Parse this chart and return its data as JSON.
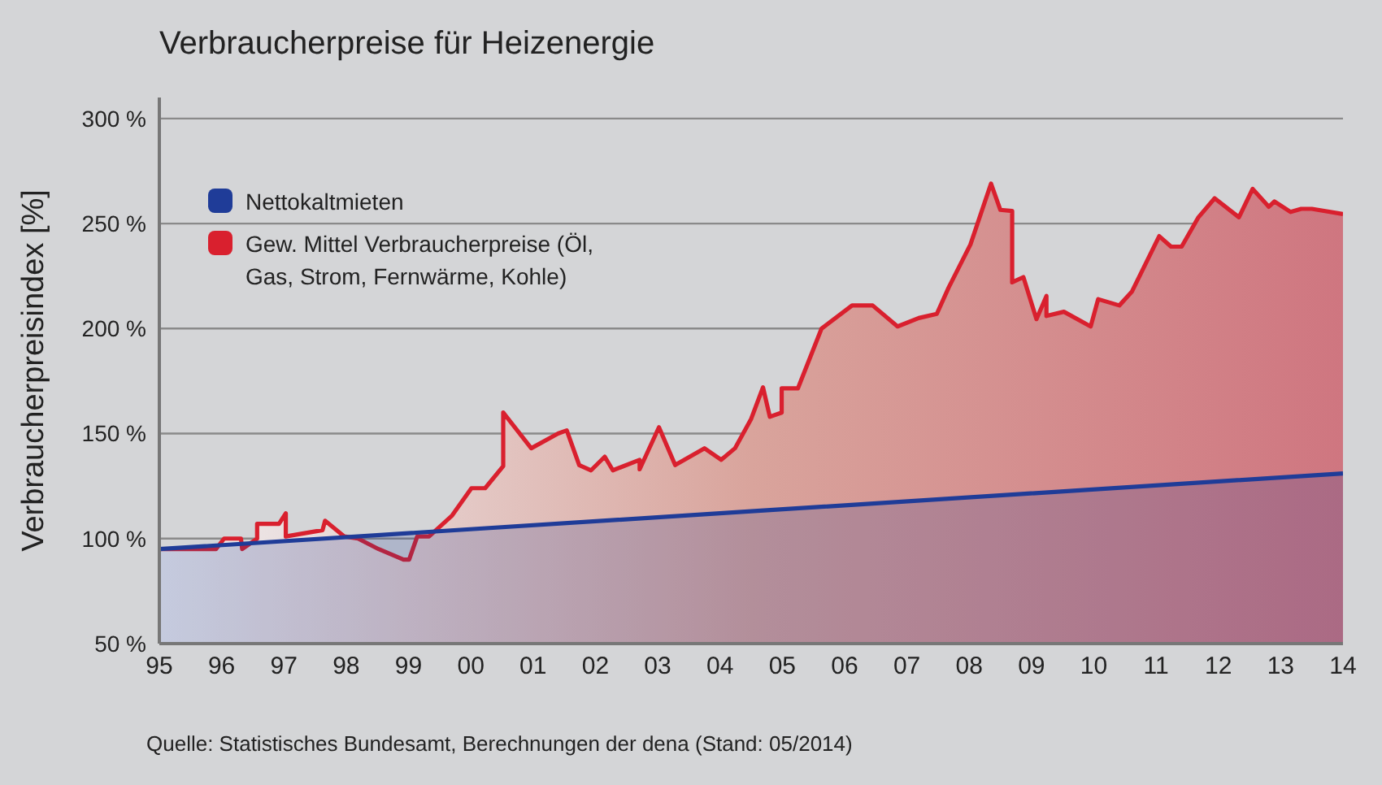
{
  "chart_data": {
    "type": "area",
    "title": "Verbraucherpreise für Heizenergie",
    "ylabel": "Verbraucherpreisindex [%]",
    "xlim": [
      1995,
      2014
    ],
    "xticks": [
      {
        "value": 1995,
        "label": "95"
      },
      {
        "value": 1996,
        "label": "96"
      },
      {
        "value": 1997,
        "label": "97"
      },
      {
        "value": 1998,
        "label": "98"
      },
      {
        "value": 1999,
        "label": "99"
      },
      {
        "value": 2000,
        "label": "00"
      },
      {
        "value": 2001,
        "label": "01"
      },
      {
        "value": 2002,
        "label": "02"
      },
      {
        "value": 2003,
        "label": "03"
      },
      {
        "value": 2004,
        "label": "04"
      },
      {
        "value": 2005,
        "label": "05"
      },
      {
        "value": 2006,
        "label": "06"
      },
      {
        "value": 2007,
        "label": "07"
      },
      {
        "value": 2008,
        "label": "08"
      },
      {
        "value": 2009,
        "label": "09"
      },
      {
        "value": 2010,
        "label": "10"
      },
      {
        "value": 2011,
        "label": "11"
      },
      {
        "value": 2012,
        "label": "12"
      },
      {
        "value": 2013,
        "label": "13"
      },
      {
        "value": 2014,
        "label": "14"
      }
    ],
    "ylim": [
      50,
      310
    ],
    "yticks": [
      {
        "value": 50,
        "label": "50 %"
      },
      {
        "value": 100,
        "label": "100 %"
      },
      {
        "value": 150,
        "label": "150 %"
      },
      {
        "value": 200,
        "label": "200 %"
      },
      {
        "value": 250,
        "label": "250 %"
      },
      {
        "value": 300,
        "label": "300 %"
      }
    ],
    "grid": "y",
    "legend": "top left",
    "series": [
      {
        "name": "Gew. Mittel Verbraucherpreise (Öl, Gas, Strom, Fernwärme, Kohle)",
        "color": "#d9202e",
        "x": [
          1995,
          1995.91,
          1996.04,
          1996.31,
          1996.33,
          1996.57,
          1996.57,
          1996.92,
          1997.03,
          1997.03,
          1997.62,
          1997.66,
          1997.97,
          1998.19,
          1998.52,
          1998.92,
          1999.01,
          1999.14,
          1999.33,
          1999.7,
          2000.01,
          2000.23,
          2000.52,
          2000.52,
          2000.97,
          2001.4,
          2001.54,
          2001.74,
          2001.93,
          2002.15,
          2002.28,
          2002.71,
          2002.71,
          2003.02,
          2003.28,
          2003.75,
          2004.02,
          2004.24,
          2004.5,
          2004.69,
          2004.8,
          2004.99,
          2004.99,
          2005.25,
          2005.63,
          2006.12,
          2006.45,
          2006.85,
          2007.19,
          2007.48,
          2007.67,
          2008.02,
          2008.35,
          2008.5,
          2008.69,
          2008.69,
          2008.87,
          2009.08,
          2009.24,
          2009.24,
          2009.52,
          2009.95,
          2010.07,
          2010.41,
          2010.61,
          2011.05,
          2011.24,
          2011.41,
          2011.68,
          2011.94,
          2012.33,
          2012.55,
          2012.81,
          2012.9,
          2013.16,
          2013.33,
          2013.5,
          2014
        ],
        "values": [
          95,
          95,
          100,
          100,
          95,
          100,
          107,
          107,
          112,
          101,
          104,
          108.5,
          101,
          100,
          95,
          90,
          90,
          101,
          101,
          111,
          124,
          124,
          134.5,
          160,
          143,
          150,
          151.5,
          135,
          132.5,
          139,
          132.5,
          137.5,
          133,
          153,
          135,
          143,
          137.5,
          143,
          157,
          172,
          158,
          160,
          171.5,
          171.5,
          200,
          211,
          211,
          201,
          205,
          207,
          219.5,
          240,
          269,
          256.5,
          256,
          222,
          224.5,
          204.5,
          215.5,
          206,
          208,
          201,
          214,
          211,
          217.5,
          244,
          239,
          239,
          253,
          262,
          253,
          266.5,
          258,
          260.5,
          255.5,
          257,
          257,
          254.5
        ]
      },
      {
        "name": "Nettokaltmieten",
        "color": "#1f3c98",
        "x": [
          1995,
          2004.5,
          2014
        ],
        "values": [
          95,
          113,
          131
        ]
      }
    ],
    "annotations": [
      "Quelle: Statistisches Bundesamt, Berechnungen der dena (Stand: 05/2014)"
    ]
  }
}
